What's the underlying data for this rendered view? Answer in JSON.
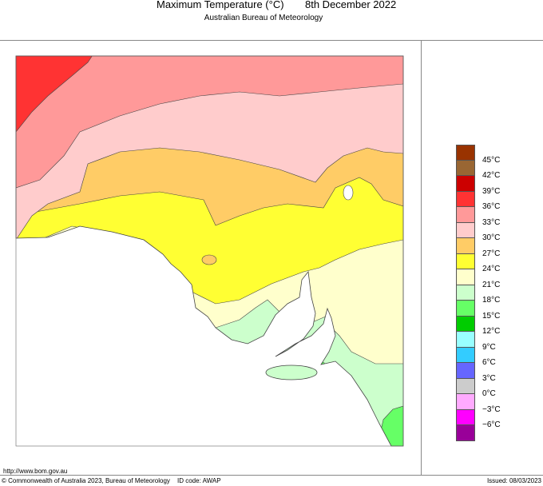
{
  "header": {
    "title": "Maximum Temperature (°C)",
    "date": "8th December 2022",
    "subtitle": "Australian Bureau of Meteorology"
  },
  "legend": {
    "colors": [
      "#993300",
      "#996633",
      "#cc0000",
      "#ff3333",
      "#ff9999",
      "#ffcccc",
      "#ffcc66",
      "#ffff33",
      "#ffffcc",
      "#ccffcc",
      "#66ff66",
      "#00cc00",
      "#99ffff",
      "#33ccff",
      "#6666ff",
      "#cccccc",
      "#ffaaff",
      "#ff00ff",
      "#990099"
    ],
    "labels": [
      "45°C",
      "42°C",
      "39°C",
      "36°C",
      "33°C",
      "30°C",
      "27°C",
      "24°C",
      "21°C",
      "18°C",
      "15°C",
      "12°C",
      "9°C",
      "6°C",
      "3°C",
      "0°C",
      "−3°C",
      "−6°C"
    ]
  },
  "footer": {
    "url": "http://www.bom.gov.au",
    "copyright": "© Commonwealth of Australia 2023, Bureau of Meteorology",
    "id_code": "ID code: AWAP",
    "issued": "Issued: 08/03/2023"
  }
}
